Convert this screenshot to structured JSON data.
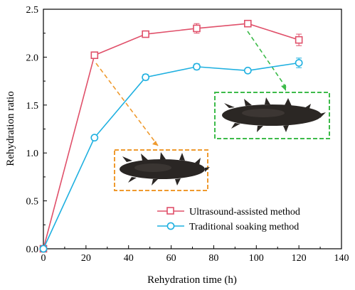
{
  "chart_data": {
    "type": "line",
    "xlabel": "Rehydration time (h)",
    "ylabel": "Rehydration ratio",
    "xlim": [
      0,
      140
    ],
    "ylim": [
      0,
      2.5
    ],
    "xticks": [
      0,
      20,
      40,
      60,
      80,
      100,
      120,
      140
    ],
    "yticks": [
      0.0,
      0.5,
      1.0,
      1.5,
      2.0,
      2.5
    ],
    "xtick_labels": [
      "0",
      "20",
      "40",
      "60",
      "80",
      "100",
      "120",
      "140"
    ],
    "ytick_labels": [
      "0.0",
      "0.5",
      "1.0",
      "1.5",
      "2.0",
      "2.5"
    ],
    "grid": false,
    "legend_position": "bottom-right",
    "series": [
      {
        "name": "Ultrasound-assisted method",
        "color": "#e0506a",
        "marker": "square",
        "x": [
          0,
          24,
          48,
          72,
          96,
          120
        ],
        "values": [
          0.0,
          2.02,
          2.24,
          2.3,
          2.35,
          2.18
        ],
        "errors": [
          0.0,
          0.0,
          0.03,
          0.05,
          0.03,
          0.06
        ]
      },
      {
        "name": "Traditional soaking method",
        "color": "#1fb0e0",
        "marker": "circle",
        "x": [
          0,
          24,
          48,
          72,
          96,
          120
        ],
        "values": [
          0.0,
          1.16,
          1.79,
          1.9,
          1.86,
          1.94
        ],
        "errors": [
          0.0,
          0.0,
          0.03,
          0.03,
          0.02,
          0.05
        ]
      }
    ],
    "annotations": [
      {
        "name": "orange-inset",
        "color": "#ef9a2e",
        "from_x": 24,
        "from_y": 2.02,
        "photo": "rehydrated sea cucumber"
      },
      {
        "name": "green-inset",
        "color": "#3dbb4a",
        "from_x": 96,
        "from_y": 2.35,
        "photo": "rehydrated sea cucumber"
      }
    ]
  }
}
